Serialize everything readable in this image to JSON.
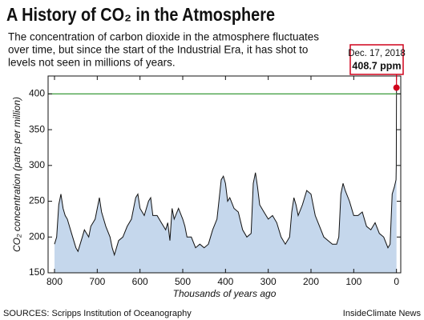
{
  "chart_data": {
    "type": "area",
    "title": "A History of CO₂ in the Atmosphere",
    "subtitle": [
      "The concentration of carbon dioxide in the atmosphere fluctuates",
      "over time, but since the start of the Industrial Era, it has shot to",
      "levels not seen in millions of years."
    ],
    "x_label": "Thousands of years ago",
    "y_label": "CO₂ concentration (parts per million)",
    "source": "SOURCES: Scripps Institution of Oceanography",
    "credit": "InsideClimate News",
    "xlim": [
      815,
      -10
    ],
    "xticks": [
      800,
      700,
      600,
      500,
      400,
      300,
      200,
      100,
      0
    ],
    "ylim": [
      150,
      425
    ],
    "yticks": [
      150,
      200,
      250,
      300,
      350,
      400
    ],
    "reference_line": {
      "value": 400,
      "color": "#3a9a3a"
    },
    "annotation": {
      "date": "Dec. 17, 2018",
      "value": 408.7,
      "label": "408.7 ppm",
      "x": 0,
      "color": "#d0021b"
    },
    "series": [
      {
        "color": "#c5d7ec",
        "line_color": "#111111",
        "x": [
          800,
          795,
          790,
          785,
          780,
          775,
          770,
          760,
          750,
          745,
          740,
          735,
          730,
          720,
          715,
          705,
          695,
          690,
          680,
          670,
          665,
          660,
          650,
          640,
          630,
          620,
          610,
          605,
          600,
          590,
          580,
          575,
          570,
          560,
          550,
          540,
          535,
          530,
          525,
          520,
          510,
          500,
          495,
          490,
          480,
          470,
          460,
          450,
          440,
          430,
          420,
          410,
          405,
          400,
          395,
          390,
          380,
          370,
          360,
          350,
          340,
          335,
          330,
          325,
          320,
          310,
          300,
          290,
          280,
          270,
          260,
          250,
          245,
          240,
          235,
          230,
          220,
          210,
          200,
          190,
          180,
          170,
          160,
          150,
          140,
          135,
          130,
          125,
          120,
          110,
          100,
          90,
          80,
          70,
          60,
          50,
          40,
          30,
          20,
          15,
          10,
          5,
          1,
          0.5,
          0
        ],
        "values": [
          190,
          200,
          245,
          260,
          240,
          230,
          225,
          205,
          185,
          180,
          190,
          200,
          210,
          200,
          215,
          225,
          255,
          235,
          215,
          200,
          185,
          175,
          195,
          200,
          215,
          225,
          255,
          260,
          240,
          230,
          250,
          255,
          230,
          230,
          220,
          210,
          220,
          195,
          240,
          225,
          240,
          225,
          215,
          200,
          200,
          185,
          190,
          185,
          190,
          210,
          225,
          280,
          285,
          275,
          250,
          255,
          240,
          235,
          210,
          200,
          205,
          275,
          290,
          270,
          245,
          235,
          225,
          230,
          220,
          200,
          190,
          200,
          235,
          255,
          245,
          230,
          245,
          265,
          260,
          230,
          215,
          200,
          195,
          190,
          190,
          200,
          260,
          275,
          265,
          250,
          230,
          230,
          235,
          215,
          210,
          220,
          205,
          200,
          185,
          190,
          260,
          270,
          280,
          300,
          408.7
        ]
      }
    ]
  }
}
